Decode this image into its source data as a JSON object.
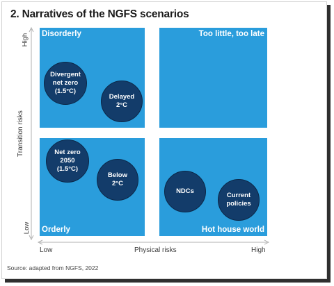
{
  "title": "2. Narratives of the NGFS scenarios",
  "quadrants": {
    "top_left": "Disorderly",
    "top_right": "Too little, too late",
    "bottom_left": "Orderly",
    "bottom_right": "Hot house world"
  },
  "scenarios": {
    "divergent": "Divergent\nnet zero\n(1.5°C)",
    "delayed": "Delayed\n2°C",
    "net_zero": "Net zero\n2050\n(1.5°C)",
    "below": "Below\n2°C",
    "ndcs": "NDCs",
    "current": "Current\npolicies"
  },
  "y_axis": {
    "title": "Transition risks",
    "high": "High",
    "low": "Low"
  },
  "x_axis": {
    "title": "Physical risks",
    "low": "Low",
    "high": "High"
  },
  "source": "Source: adapted from NGFS, 2022",
  "colors": {
    "quadrant": "#2a9ddc",
    "bubble": "#133c6a",
    "axis": "#b0b0b0"
  }
}
